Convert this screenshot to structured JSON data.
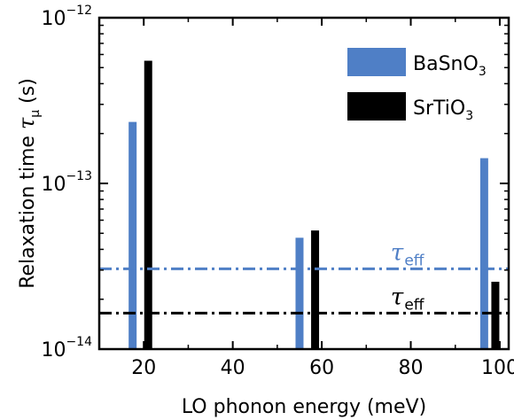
{
  "chart_data": {
    "type": "bar",
    "xlabel": "LO phonon energy (meV)",
    "ylabel": "Relaxation time τ_μ (s)",
    "ylabel_main": "Relaxation time ",
    "ylabel_symbol": "τ",
    "ylabel_sub": "μ",
    "ylabel_unit": " (s)",
    "xlim": [
      10,
      102
    ],
    "ylim": [
      1e-14,
      1e-12
    ],
    "yscale": "log",
    "x_ticks": [
      20,
      40,
      60,
      80,
      100
    ],
    "y_ticks": [
      {
        "value": 1e-14,
        "base": "10",
        "exp": "−14"
      },
      {
        "value": 1e-13,
        "base": "10",
        "exp": "−13"
      },
      {
        "value": 1e-12,
        "base": "10",
        "exp": "−12"
      }
    ],
    "legend_position": "top-right",
    "series": [
      {
        "name": "BaSnO3",
        "label_main": "BaSnO",
        "label_sub": "3",
        "color": "#4f7fc6",
        "points": [
          {
            "x": 17.5,
            "y": 2.35e-13
          },
          {
            "x": 55.0,
            "y": 4.7e-14
          },
          {
            "x": 96.5,
            "y": 1.42e-13
          }
        ]
      },
      {
        "name": "SrTiO3",
        "label_main": "SrTiO",
        "label_sub": "3",
        "color": "#000000",
        "points": [
          {
            "x": 21.0,
            "y": 5.5e-13
          },
          {
            "x": 58.5,
            "y": 5.2e-14
          },
          {
            "x": 99.0,
            "y": 2.55e-14
          }
        ]
      }
    ],
    "reference_lines": [
      {
        "name": "tau_eff_BaSnO3",
        "y": 3.05e-14,
        "color": "#4f7fc6",
        "style": "dash-dot",
        "label_symbol": "τ",
        "label_sub": "eff",
        "label_x": 75.5
      },
      {
        "name": "tau_eff_SrTiO3",
        "y": 1.65e-14,
        "color": "#000000",
        "style": "dash-dot",
        "label_symbol": "τ",
        "label_sub": "eff",
        "label_x": 75.5
      }
    ]
  }
}
